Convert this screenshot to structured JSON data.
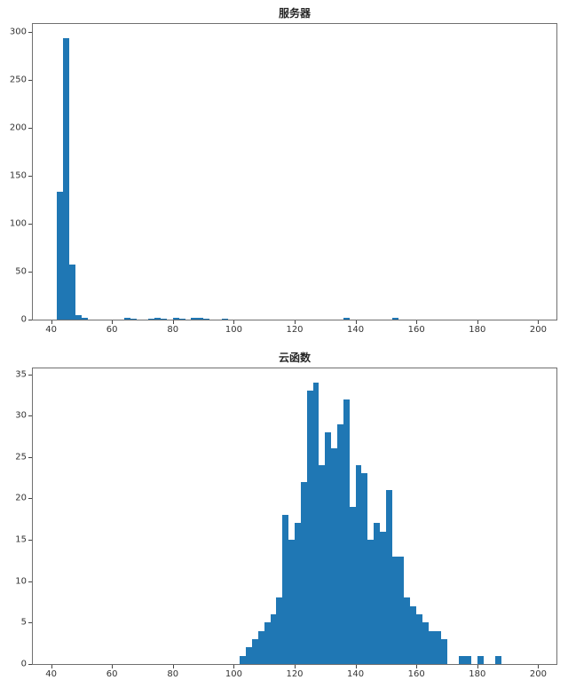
{
  "figure": {
    "background": "#ffffff"
  },
  "chart_data": [
    {
      "type": "bar",
      "subtype": "histogram",
      "title": "服务器",
      "xlabel": "",
      "ylabel": "",
      "bar_color": "#1f77b4",
      "bin_width": 2,
      "xlim": [
        34,
        206
      ],
      "ylim": [
        0,
        308
      ],
      "xticks": [
        40,
        60,
        80,
        100,
        120,
        140,
        160,
        180,
        200
      ],
      "yticks": [
        0,
        50,
        100,
        150,
        200,
        250,
        300
      ],
      "grid": false,
      "legend": "none",
      "bins": [
        {
          "x": 42,
          "count": 133
        },
        {
          "x": 44,
          "count": 293
        },
        {
          "x": 46,
          "count": 57
        },
        {
          "x": 48,
          "count": 5
        },
        {
          "x": 50,
          "count": 2
        },
        {
          "x": 64,
          "count": 2
        },
        {
          "x": 66,
          "count": 1
        },
        {
          "x": 72,
          "count": 1
        },
        {
          "x": 74,
          "count": 2
        },
        {
          "x": 76,
          "count": 1
        },
        {
          "x": 80,
          "count": 2
        },
        {
          "x": 82,
          "count": 1
        },
        {
          "x": 86,
          "count": 2
        },
        {
          "x": 88,
          "count": 2
        },
        {
          "x": 90,
          "count": 1
        },
        {
          "x": 96,
          "count": 1
        },
        {
          "x": 136,
          "count": 2
        },
        {
          "x": 152,
          "count": 2
        }
      ]
    },
    {
      "type": "bar",
      "subtype": "histogram",
      "title": "云函数",
      "xlabel": "",
      "ylabel": "",
      "bar_color": "#1f77b4",
      "bin_width": 2,
      "xlim": [
        34,
        206
      ],
      "ylim": [
        0,
        35.7
      ],
      "xticks": [
        40,
        60,
        80,
        100,
        120,
        140,
        160,
        180,
        200
      ],
      "yticks": [
        0,
        5,
        10,
        15,
        20,
        25,
        30,
        35
      ],
      "grid": false,
      "legend": "none",
      "bins": [
        {
          "x": 102,
          "count": 1
        },
        {
          "x": 104,
          "count": 2
        },
        {
          "x": 106,
          "count": 3
        },
        {
          "x": 108,
          "count": 4
        },
        {
          "x": 110,
          "count": 5
        },
        {
          "x": 112,
          "count": 6
        },
        {
          "x": 114,
          "count": 8
        },
        {
          "x": 116,
          "count": 18
        },
        {
          "x": 118,
          "count": 15
        },
        {
          "x": 120,
          "count": 17
        },
        {
          "x": 122,
          "count": 22
        },
        {
          "x": 124,
          "count": 33
        },
        {
          "x": 126,
          "count": 34
        },
        {
          "x": 128,
          "count": 24
        },
        {
          "x": 130,
          "count": 28
        },
        {
          "x": 132,
          "count": 26
        },
        {
          "x": 134,
          "count": 29
        },
        {
          "x": 136,
          "count": 32
        },
        {
          "x": 138,
          "count": 19
        },
        {
          "x": 140,
          "count": 24
        },
        {
          "x": 142,
          "count": 23
        },
        {
          "x": 144,
          "count": 15
        },
        {
          "x": 146,
          "count": 17
        },
        {
          "x": 148,
          "count": 16
        },
        {
          "x": 150,
          "count": 21
        },
        {
          "x": 152,
          "count": 13
        },
        {
          "x": 154,
          "count": 13
        },
        {
          "x": 156,
          "count": 8
        },
        {
          "x": 158,
          "count": 7
        },
        {
          "x": 160,
          "count": 6
        },
        {
          "x": 162,
          "count": 5
        },
        {
          "x": 164,
          "count": 4
        },
        {
          "x": 166,
          "count": 4
        },
        {
          "x": 168,
          "count": 3
        },
        {
          "x": 174,
          "count": 1
        },
        {
          "x": 176,
          "count": 1
        },
        {
          "x": 180,
          "count": 1
        },
        {
          "x": 186,
          "count": 1
        }
      ]
    }
  ]
}
